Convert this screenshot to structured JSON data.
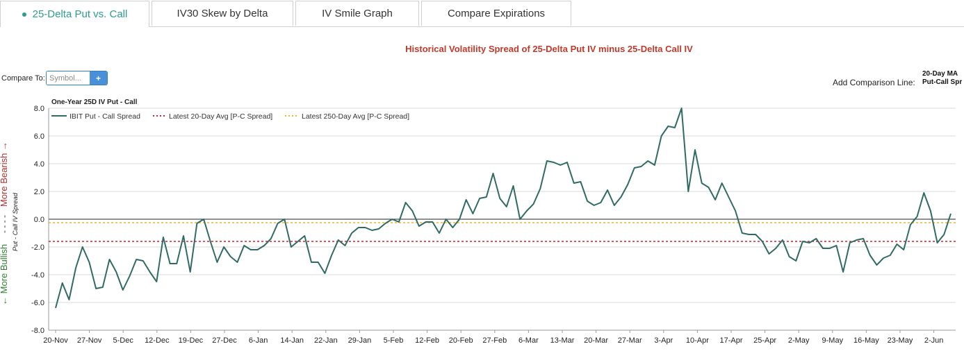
{
  "tabs": [
    {
      "label": "25-Delta Put vs. Call",
      "active": true
    },
    {
      "label": "IV30 Skew by Delta",
      "active": false
    },
    {
      "label": "IV Smile Graph",
      "active": false
    },
    {
      "label": "Compare Expirations",
      "active": false
    }
  ],
  "header": {
    "title": "Historical Volatility Spread of 25-Delta Put IV minus 25-Delta Call IV"
  },
  "compare": {
    "label": "Compare To:",
    "placeholder": "Symbol...",
    "add_icon": "plus-icon",
    "add_label": "+"
  },
  "comparison_line": {
    "label": "Add Comparison Line:",
    "selected_line1": "20-Day MA",
    "selected_line2": "Put-Call Spr"
  },
  "colors": {
    "series": "#2f6b63",
    "avg20": "#c62828",
    "avg250": "#f0b429",
    "bearish": "#b03030",
    "bullish": "#2e7d32",
    "accent": "#2a9d8f"
  },
  "chart_data": {
    "type": "line",
    "title": "One-Year 25D IV Put - Call",
    "ylabel": "Put - Call IV Spread",
    "ylabel_bearish": "More Bearish →",
    "ylabel_bullish": "← More Bullish",
    "ylabel_sep": "- - - -",
    "ylim": [
      -8,
      8
    ],
    "yticks": [
      "8.0",
      "6.0",
      "4.0",
      "2.0",
      "0.0",
      "-2.0",
      "-4.0",
      "-6.0",
      "-8.0"
    ],
    "grid": true,
    "legend_position": "top-left",
    "xticks": [
      "20-Nov",
      "27-Nov",
      "5-Dec",
      "12-Dec",
      "19-Dec",
      "27-Dec",
      "6-Jan",
      "14-Jan",
      "22-Jan",
      "29-Jan",
      "5-Feb",
      "12-Feb",
      "20-Feb",
      "27-Feb",
      "6-Mar",
      "13-Mar",
      "20-Mar",
      "27-Mar",
      "3-Apr",
      "10-Apr",
      "17-Apr",
      "25-Apr",
      "2-May",
      "9-May",
      "16-May",
      "23-May",
      "2-Jun"
    ],
    "series": [
      {
        "name": "IBIT Put - Call Spread",
        "values": [
          -6.4,
          -4.6,
          -5.8,
          -3.5,
          -2.0,
          -3.1,
          -5.0,
          -4.9,
          -2.9,
          -3.8,
          -5.1,
          -4.1,
          -2.9,
          -3.0,
          -3.8,
          -4.5,
          -1.3,
          -3.2,
          -3.2,
          -1.2,
          -3.8,
          -0.3,
          0.0,
          -1.6,
          -3.1,
          -2.0,
          -2.7,
          -3.1,
          -1.9,
          -2.2,
          -2.2,
          -1.9,
          -1.4,
          -0.3,
          0.0,
          -2.0,
          -1.6,
          -1.2,
          -3.1,
          -3.1,
          -3.9,
          -2.6,
          -1.5,
          -1.9,
          -1.0,
          -0.6,
          -0.6,
          -0.8,
          -0.7,
          -0.3,
          0.0,
          -0.2,
          1.2,
          0.6,
          -0.5,
          -0.2,
          -0.2,
          -1.0,
          0.0,
          -0.6,
          0.0,
          1.4,
          0.4,
          1.5,
          1.6,
          3.3,
          1.5,
          0.9,
          2.4,
          0.0,
          0.6,
          1.1,
          2.2,
          4.2,
          4.1,
          3.9,
          4.1,
          2.6,
          2.7,
          1.3,
          1.0,
          1.2,
          2.1,
          1.0,
          1.6,
          2.5,
          3.7,
          3.8,
          4.2,
          3.9,
          6.0,
          6.7,
          6.6,
          8.0,
          2.0,
          5.0,
          2.6,
          2.3,
          1.4,
          2.6,
          1.6,
          0.6,
          -1.0,
          -1.1,
          -1.1,
          -1.6,
          -2.5,
          -2.1,
          -1.5,
          -2.7,
          -3.0,
          -1.6,
          -1.7,
          -1.4,
          -2.1,
          -2.1,
          -1.9,
          -3.8,
          -1.7,
          -1.5,
          -1.4,
          -2.6,
          -3.3,
          -2.8,
          -2.6,
          -1.8,
          -2.2,
          -0.4,
          0.2,
          1.9,
          0.6,
          -1.7,
          -1.1,
          0.4
        ]
      },
      {
        "name": "Latest 20-Day Avg [P-C Spread]",
        "values": [
          -1.6
        ]
      },
      {
        "name": "Latest 250-Day Avg [P-C Spread]",
        "values": [
          -0.25
        ]
      }
    ]
  }
}
